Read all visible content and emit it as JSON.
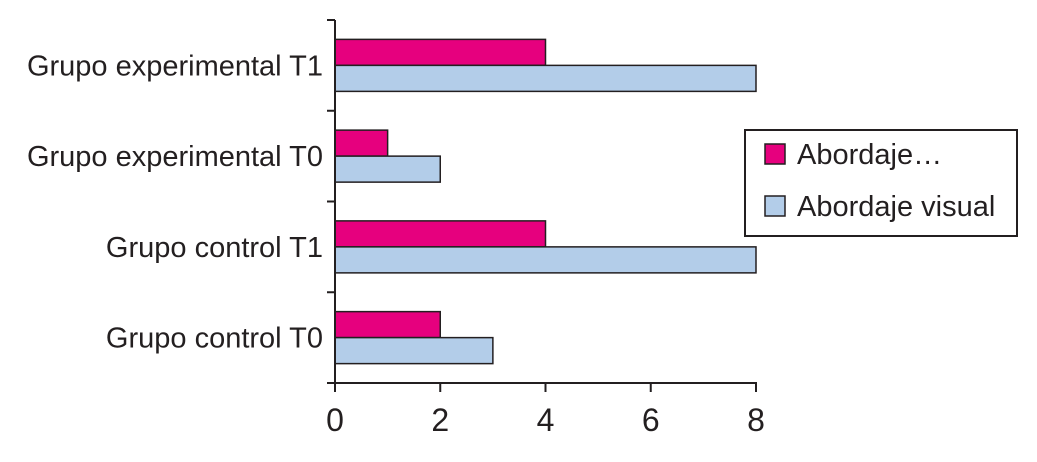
{
  "chart_data": {
    "type": "bar",
    "orientation": "horizontal",
    "categories": [
      "Grupo experimental T1",
      "Grupo experimental T0",
      "Grupo control T1",
      "Grupo control T0"
    ],
    "series": [
      {
        "name": "Abordaje…",
        "color": "#e6007e",
        "values": [
          4,
          1,
          4,
          2
        ]
      },
      {
        "name": "Abordaje visual",
        "color": "#b3cde9",
        "values": [
          8,
          2,
          8,
          3
        ]
      }
    ],
    "x_ticks": [
      "0",
      "2",
      "4",
      "6",
      "8"
    ],
    "xlim": [
      0,
      8
    ],
    "title": "",
    "xlabel": "",
    "ylabel": "",
    "grid": false,
    "legend_position": "right"
  }
}
